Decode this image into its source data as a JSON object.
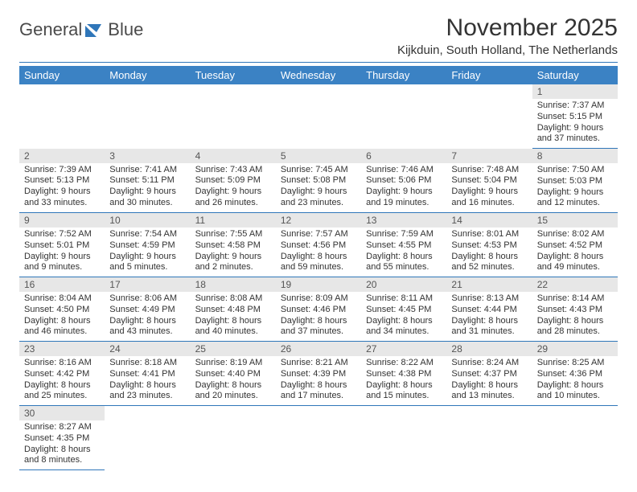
{
  "logo": {
    "t1": "General",
    "t2": "Blue"
  },
  "title": "November 2025",
  "subtitle": "Kijkduin, South Holland, The Netherlands",
  "colors": {
    "header_bg": "#3b82c4",
    "header_text": "#ffffff",
    "divider": "#2f76b9",
    "daynum_bg": "#e7e7e7",
    "text": "#333333"
  },
  "weekdays": [
    "Sunday",
    "Monday",
    "Tuesday",
    "Wednesday",
    "Thursday",
    "Friday",
    "Saturday"
  ],
  "weeks": [
    [
      null,
      null,
      null,
      null,
      null,
      null,
      {
        "n": "1",
        "sr": "7:37 AM",
        "ss": "5:15 PM",
        "dl": "9 hours and 37 minutes."
      }
    ],
    [
      {
        "n": "2",
        "sr": "7:39 AM",
        "ss": "5:13 PM",
        "dl": "9 hours and 33 minutes."
      },
      {
        "n": "3",
        "sr": "7:41 AM",
        "ss": "5:11 PM",
        "dl": "9 hours and 30 minutes."
      },
      {
        "n": "4",
        "sr": "7:43 AM",
        "ss": "5:09 PM",
        "dl": "9 hours and 26 minutes."
      },
      {
        "n": "5",
        "sr": "7:45 AM",
        "ss": "5:08 PM",
        "dl": "9 hours and 23 minutes."
      },
      {
        "n": "6",
        "sr": "7:46 AM",
        "ss": "5:06 PM",
        "dl": "9 hours and 19 minutes."
      },
      {
        "n": "7",
        "sr": "7:48 AM",
        "ss": "5:04 PM",
        "dl": "9 hours and 16 minutes."
      },
      {
        "n": "8",
        "sr": "7:50 AM",
        "ss": "5:03 PM",
        "dl": "9 hours and 12 minutes."
      }
    ],
    [
      {
        "n": "9",
        "sr": "7:52 AM",
        "ss": "5:01 PM",
        "dl": "9 hours and 9 minutes."
      },
      {
        "n": "10",
        "sr": "7:54 AM",
        "ss": "4:59 PM",
        "dl": "9 hours and 5 minutes."
      },
      {
        "n": "11",
        "sr": "7:55 AM",
        "ss": "4:58 PM",
        "dl": "9 hours and 2 minutes."
      },
      {
        "n": "12",
        "sr": "7:57 AM",
        "ss": "4:56 PM",
        "dl": "8 hours and 59 minutes."
      },
      {
        "n": "13",
        "sr": "7:59 AM",
        "ss": "4:55 PM",
        "dl": "8 hours and 55 minutes."
      },
      {
        "n": "14",
        "sr": "8:01 AM",
        "ss": "4:53 PM",
        "dl": "8 hours and 52 minutes."
      },
      {
        "n": "15",
        "sr": "8:02 AM",
        "ss": "4:52 PM",
        "dl": "8 hours and 49 minutes."
      }
    ],
    [
      {
        "n": "16",
        "sr": "8:04 AM",
        "ss": "4:50 PM",
        "dl": "8 hours and 46 minutes."
      },
      {
        "n": "17",
        "sr": "8:06 AM",
        "ss": "4:49 PM",
        "dl": "8 hours and 43 minutes."
      },
      {
        "n": "18",
        "sr": "8:08 AM",
        "ss": "4:48 PM",
        "dl": "8 hours and 40 minutes."
      },
      {
        "n": "19",
        "sr": "8:09 AM",
        "ss": "4:46 PM",
        "dl": "8 hours and 37 minutes."
      },
      {
        "n": "20",
        "sr": "8:11 AM",
        "ss": "4:45 PM",
        "dl": "8 hours and 34 minutes."
      },
      {
        "n": "21",
        "sr": "8:13 AM",
        "ss": "4:44 PM",
        "dl": "8 hours and 31 minutes."
      },
      {
        "n": "22",
        "sr": "8:14 AM",
        "ss": "4:43 PM",
        "dl": "8 hours and 28 minutes."
      }
    ],
    [
      {
        "n": "23",
        "sr": "8:16 AM",
        "ss": "4:42 PM",
        "dl": "8 hours and 25 minutes."
      },
      {
        "n": "24",
        "sr": "8:18 AM",
        "ss": "4:41 PM",
        "dl": "8 hours and 23 minutes."
      },
      {
        "n": "25",
        "sr": "8:19 AM",
        "ss": "4:40 PM",
        "dl": "8 hours and 20 minutes."
      },
      {
        "n": "26",
        "sr": "8:21 AM",
        "ss": "4:39 PM",
        "dl": "8 hours and 17 minutes."
      },
      {
        "n": "27",
        "sr": "8:22 AM",
        "ss": "4:38 PM",
        "dl": "8 hours and 15 minutes."
      },
      {
        "n": "28",
        "sr": "8:24 AM",
        "ss": "4:37 PM",
        "dl": "8 hours and 13 minutes."
      },
      {
        "n": "29",
        "sr": "8:25 AM",
        "ss": "4:36 PM",
        "dl": "8 hours and 10 minutes."
      }
    ],
    [
      {
        "n": "30",
        "sr": "8:27 AM",
        "ss": "4:35 PM",
        "dl": "8 hours and 8 minutes."
      },
      null,
      null,
      null,
      null,
      null,
      null
    ]
  ],
  "labels": {
    "sunrise": "Sunrise: ",
    "sunset": "Sunset: ",
    "daylight": "Daylight: "
  }
}
